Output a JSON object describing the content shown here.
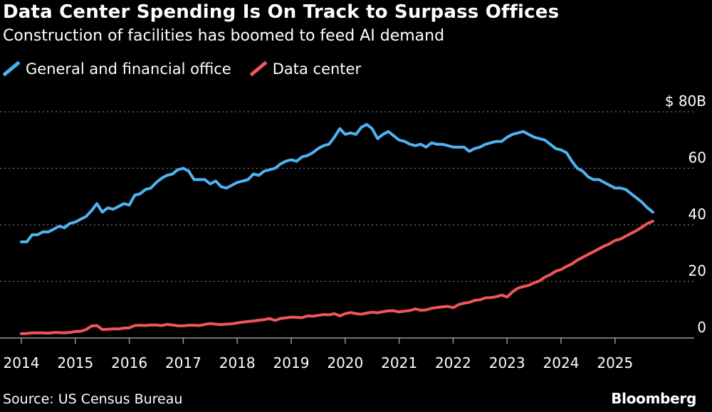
{
  "title": "Data Center Spending Is On Track to Surpass Offices",
  "subtitle": "Construction of facilities has boomed to feed AI demand",
  "source": "Source: US Census Bureau",
  "brand": "Bloomberg",
  "colors": {
    "background": "#000000",
    "office": "#4FB3F2",
    "data_center": "#F2545B",
    "grid": "#777777",
    "axis": "#9a9a9a"
  },
  "chart_data": {
    "type": "line",
    "title": "Data Center Spending Is On Track to Surpass Offices",
    "subtitle": "Construction of facilities has boomed to feed AI demand",
    "xlabel": "",
    "ylabel": "",
    "xlim": [
      2014,
      2025.83
    ],
    "ylim": [
      0,
      80
    ],
    "yaxis_side": "right",
    "y_unit_prefix": "$",
    "y_unit_suffix": "B",
    "y_ticks": [
      0,
      20,
      40,
      60,
      80
    ],
    "y_tick_labels": [
      "0",
      "20",
      "40",
      "60",
      "$ 80B"
    ],
    "x_ticks": [
      2014,
      2015,
      2016,
      2017,
      2018,
      2019,
      2020,
      2021,
      2022,
      2023,
      2024,
      2025
    ],
    "x_tick_labels": [
      "2014",
      "2015",
      "2016",
      "2017",
      "2018",
      "2019",
      "2020",
      "2021",
      "2022",
      "2023",
      "2024",
      "2025"
    ],
    "grid": true,
    "legend_placement": "top-left",
    "series": [
      {
        "name": "General and financial office",
        "color": "#4FB3F2",
        "points": [
          [
            2014.0,
            34
          ],
          [
            2014.1,
            34
          ],
          [
            2014.2,
            36.5
          ],
          [
            2014.3,
            36.5
          ],
          [
            2014.4,
            37.5
          ],
          [
            2014.5,
            37.5
          ],
          [
            2014.6,
            38.5
          ],
          [
            2014.7,
            39.5
          ],
          [
            2014.8,
            39
          ],
          [
            2014.9,
            40.5
          ],
          [
            2015.0,
            41
          ],
          [
            2015.1,
            42
          ],
          [
            2015.2,
            43
          ],
          [
            2015.3,
            45
          ],
          [
            2015.4,
            47.5
          ],
          [
            2015.5,
            44.5
          ],
          [
            2015.6,
            46
          ],
          [
            2015.7,
            45.5
          ],
          [
            2015.8,
            46.5
          ],
          [
            2015.9,
            47.5
          ],
          [
            2016.0,
            47
          ],
          [
            2016.1,
            50.5
          ],
          [
            2016.2,
            51
          ],
          [
            2016.3,
            52.5
          ],
          [
            2016.4,
            53
          ],
          [
            2016.5,
            55
          ],
          [
            2016.6,
            56.5
          ],
          [
            2016.7,
            57.5
          ],
          [
            2016.8,
            58
          ],
          [
            2016.9,
            59.5
          ],
          [
            2017.0,
            60
          ],
          [
            2017.1,
            59
          ],
          [
            2017.2,
            56
          ],
          [
            2017.3,
            56
          ],
          [
            2017.4,
            56
          ],
          [
            2017.5,
            54.5
          ],
          [
            2017.6,
            55.5
          ],
          [
            2017.7,
            53.5
          ],
          [
            2017.8,
            53
          ],
          [
            2017.9,
            54
          ],
          [
            2018.0,
            55
          ],
          [
            2018.1,
            55.5
          ],
          [
            2018.2,
            56
          ],
          [
            2018.3,
            58
          ],
          [
            2018.4,
            57.5
          ],
          [
            2018.5,
            59
          ],
          [
            2018.6,
            59.5
          ],
          [
            2018.7,
            60
          ],
          [
            2018.8,
            61.5
          ],
          [
            2018.9,
            62.5
          ],
          [
            2019.0,
            63
          ],
          [
            2019.1,
            62.5
          ],
          [
            2019.2,
            64
          ],
          [
            2019.3,
            64.5
          ],
          [
            2019.4,
            65.5
          ],
          [
            2019.5,
            67
          ],
          [
            2019.6,
            68
          ],
          [
            2019.7,
            68.5
          ],
          [
            2019.8,
            71
          ],
          [
            2019.9,
            74
          ],
          [
            2020.0,
            72
          ],
          [
            2020.1,
            72.5
          ],
          [
            2020.2,
            72
          ],
          [
            2020.3,
            74.5
          ],
          [
            2020.4,
            75.5
          ],
          [
            2020.5,
            74
          ],
          [
            2020.6,
            70.5
          ],
          [
            2020.7,
            72
          ],
          [
            2020.8,
            73
          ],
          [
            2020.9,
            71.5
          ],
          [
            2021.0,
            70
          ],
          [
            2021.1,
            69.5
          ],
          [
            2021.2,
            68.5
          ],
          [
            2021.3,
            68
          ],
          [
            2021.4,
            68.5
          ],
          [
            2021.5,
            67.5
          ],
          [
            2021.6,
            69
          ],
          [
            2021.7,
            68.5
          ],
          [
            2021.8,
            68.5
          ],
          [
            2021.9,
            68
          ],
          [
            2022.0,
            67.5
          ],
          [
            2022.1,
            67.5
          ],
          [
            2022.2,
            67.5
          ],
          [
            2022.3,
            66
          ],
          [
            2022.4,
            67
          ],
          [
            2022.5,
            67.5
          ],
          [
            2022.6,
            68.5
          ],
          [
            2022.7,
            69
          ],
          [
            2022.8,
            69.5
          ],
          [
            2022.9,
            69.5
          ],
          [
            2023.0,
            71
          ],
          [
            2023.1,
            72
          ],
          [
            2023.2,
            72.5
          ],
          [
            2023.3,
            73
          ],
          [
            2023.4,
            72
          ],
          [
            2023.5,
            71
          ],
          [
            2023.6,
            70.5
          ],
          [
            2023.7,
            70
          ],
          [
            2023.8,
            68.5
          ],
          [
            2023.9,
            67
          ],
          [
            2024.0,
            66.5
          ],
          [
            2024.1,
            65.5
          ],
          [
            2024.2,
            62.5
          ],
          [
            2024.3,
            60
          ],
          [
            2024.4,
            59
          ],
          [
            2024.5,
            57
          ],
          [
            2024.6,
            56
          ],
          [
            2024.7,
            56
          ],
          [
            2024.8,
            55
          ],
          [
            2024.9,
            54
          ],
          [
            2025.0,
            53
          ],
          [
            2025.1,
            53
          ],
          [
            2025.2,
            52.5
          ],
          [
            2025.3,
            51
          ],
          [
            2025.4,
            49.5
          ],
          [
            2025.5,
            48
          ],
          [
            2025.6,
            46
          ],
          [
            2025.7,
            44.5
          ]
        ]
      },
      {
        "name": "Data center",
        "color": "#F2545B",
        "points": [
          [
            2014.0,
            1.5
          ],
          [
            2014.1,
            1.6
          ],
          [
            2014.2,
            1.8
          ],
          [
            2014.3,
            1.8
          ],
          [
            2014.4,
            1.8
          ],
          [
            2014.5,
            1.7
          ],
          [
            2014.6,
            1.9
          ],
          [
            2014.7,
            1.9
          ],
          [
            2014.8,
            1.8
          ],
          [
            2014.9,
            2.0
          ],
          [
            2015.0,
            2.3
          ],
          [
            2015.1,
            2.4
          ],
          [
            2015.2,
            3.0
          ],
          [
            2015.3,
            4.2
          ],
          [
            2015.4,
            4.4
          ],
          [
            2015.5,
            3.0
          ],
          [
            2015.6,
            3.1
          ],
          [
            2015.7,
            3.2
          ],
          [
            2015.8,
            3.2
          ],
          [
            2015.9,
            3.5
          ],
          [
            2016.0,
            3.6
          ],
          [
            2016.1,
            4.4
          ],
          [
            2016.2,
            4.5
          ],
          [
            2016.3,
            4.4
          ],
          [
            2016.4,
            4.6
          ],
          [
            2016.5,
            4.6
          ],
          [
            2016.6,
            4.4
          ],
          [
            2016.7,
            4.8
          ],
          [
            2016.8,
            4.6
          ],
          [
            2016.9,
            4.3
          ],
          [
            2017.0,
            4.3
          ],
          [
            2017.1,
            4.5
          ],
          [
            2017.2,
            4.5
          ],
          [
            2017.3,
            4.4
          ],
          [
            2017.4,
            4.8
          ],
          [
            2017.5,
            5.1
          ],
          [
            2017.6,
            4.9
          ],
          [
            2017.7,
            4.7
          ],
          [
            2017.8,
            4.9
          ],
          [
            2017.9,
            5.0
          ],
          [
            2018.0,
            5.3
          ],
          [
            2018.1,
            5.6
          ],
          [
            2018.2,
            5.8
          ],
          [
            2018.3,
            6.0
          ],
          [
            2018.4,
            6.3
          ],
          [
            2018.5,
            6.5
          ],
          [
            2018.6,
            6.9
          ],
          [
            2018.7,
            6.2
          ],
          [
            2018.8,
            6.9
          ],
          [
            2018.9,
            7.1
          ],
          [
            2019.0,
            7.4
          ],
          [
            2019.1,
            7.3
          ],
          [
            2019.2,
            7.2
          ],
          [
            2019.3,
            7.8
          ],
          [
            2019.4,
            7.7
          ],
          [
            2019.5,
            8.0
          ],
          [
            2019.6,
            8.3
          ],
          [
            2019.7,
            8.2
          ],
          [
            2019.8,
            8.6
          ],
          [
            2019.9,
            7.8
          ],
          [
            2020.0,
            8.6
          ],
          [
            2020.1,
            9.0
          ],
          [
            2020.2,
            8.6
          ],
          [
            2020.3,
            8.4
          ],
          [
            2020.4,
            8.8
          ],
          [
            2020.5,
            9.1
          ],
          [
            2020.6,
            8.9
          ],
          [
            2020.7,
            9.3
          ],
          [
            2020.8,
            9.6
          ],
          [
            2020.9,
            9.6
          ],
          [
            2021.0,
            9.2
          ],
          [
            2021.1,
            9.5
          ],
          [
            2021.2,
            9.7
          ],
          [
            2021.3,
            10.3
          ],
          [
            2021.4,
            9.8
          ],
          [
            2021.5,
            9.9
          ],
          [
            2021.6,
            10.5
          ],
          [
            2021.7,
            10.8
          ],
          [
            2021.8,
            11.0
          ],
          [
            2021.9,
            11.2
          ],
          [
            2022.0,
            10.7
          ],
          [
            2022.1,
            11.8
          ],
          [
            2022.2,
            12.3
          ],
          [
            2022.3,
            12.6
          ],
          [
            2022.4,
            13.3
          ],
          [
            2022.5,
            13.5
          ],
          [
            2022.6,
            14.2
          ],
          [
            2022.7,
            14.3
          ],
          [
            2022.8,
            14.6
          ],
          [
            2022.9,
            15.2
          ],
          [
            2023.0,
            14.5
          ],
          [
            2023.1,
            16.3
          ],
          [
            2023.2,
            17.6
          ],
          [
            2023.3,
            18.2
          ],
          [
            2023.4,
            18.6
          ],
          [
            2023.5,
            19.5
          ],
          [
            2023.6,
            20.2
          ],
          [
            2023.7,
            21.5
          ],
          [
            2023.8,
            22.4
          ],
          [
            2023.9,
            23.6
          ],
          [
            2024.0,
            24.2
          ],
          [
            2024.1,
            25.3
          ],
          [
            2024.2,
            26.2
          ],
          [
            2024.3,
            27.5
          ],
          [
            2024.4,
            28.5
          ],
          [
            2024.5,
            29.5
          ],
          [
            2024.6,
            30.5
          ],
          [
            2024.7,
            31.5
          ],
          [
            2024.8,
            32.5
          ],
          [
            2024.9,
            33.3
          ],
          [
            2025.0,
            34.5
          ],
          [
            2025.1,
            35.0
          ],
          [
            2025.2,
            36.0
          ],
          [
            2025.3,
            37.0
          ],
          [
            2025.4,
            38.0
          ],
          [
            2025.5,
            39.2
          ],
          [
            2025.6,
            40.5
          ],
          [
            2025.7,
            41.3
          ]
        ]
      }
    ]
  }
}
